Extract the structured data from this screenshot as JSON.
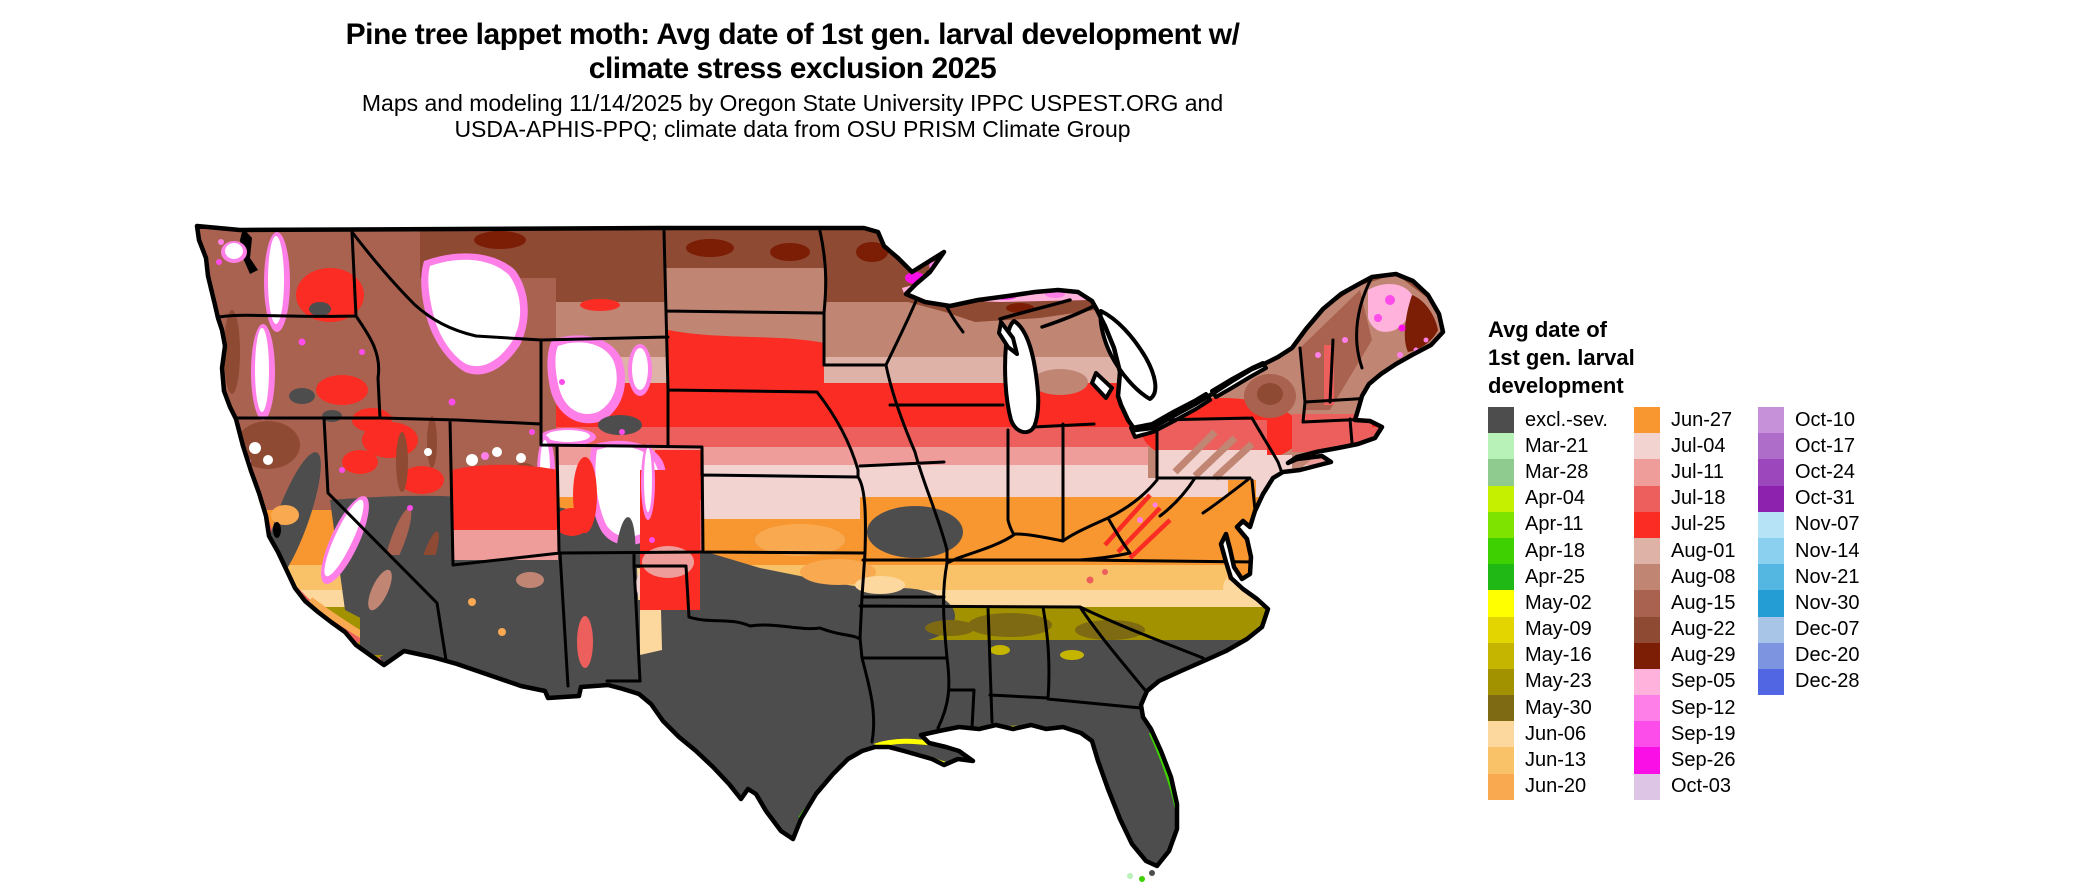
{
  "title": {
    "line1": "Pine tree lappet moth: Avg date of 1st gen. larval development w/",
    "line2": "climate stress exclusion 2025"
  },
  "subtitle": {
    "line1": "Maps and modeling 11/14/2025 by Oregon State University IPPC USPEST.ORG and",
    "line2": "USDA-APHIS-PPQ; climate data from OSU PRISM Climate Group"
  },
  "legend": {
    "title_lines": [
      "Avg date of",
      "1st gen. larval",
      "development"
    ],
    "columns": [
      [
        {
          "label": "excl.-sev.",
          "color": "#4d4d4d"
        },
        {
          "label": "Mar-21",
          "color": "#b8f2b8"
        },
        {
          "label": "Mar-28",
          "color": "#8fcb8f"
        },
        {
          "label": "Apr-04",
          "color": "#c5f000"
        },
        {
          "label": "Apr-11",
          "color": "#7fe300"
        },
        {
          "label": "Apr-18",
          "color": "#3ed000"
        },
        {
          "label": "Apr-25",
          "color": "#1fb814"
        },
        {
          "label": "May-02",
          "color": "#ffff00"
        },
        {
          "label": "May-09",
          "color": "#e3d500"
        },
        {
          "label": "May-16",
          "color": "#c6b500"
        },
        {
          "label": "May-23",
          "color": "#a39200"
        },
        {
          "label": "May-30",
          "color": "#7d6a12"
        },
        {
          "label": "Jun-06",
          "color": "#fdd89e"
        },
        {
          "label": "Jun-13",
          "color": "#fac268"
        },
        {
          "label": "Jun-20",
          "color": "#f9a950"
        }
      ],
      [
        {
          "label": "Jun-27",
          "color": "#f8962f"
        },
        {
          "label": "Jul-04",
          "color": "#f2d3cf"
        },
        {
          "label": "Jul-11",
          "color": "#ef9d9a"
        },
        {
          "label": "Jul-18",
          "color": "#ec5f5c"
        },
        {
          "label": "Jul-25",
          "color": "#fb2c23"
        },
        {
          "label": "Aug-01",
          "color": "#dfb2a8"
        },
        {
          "label": "Aug-08",
          "color": "#c08673"
        },
        {
          "label": "Aug-15",
          "color": "#a96250"
        },
        {
          "label": "Aug-22",
          "color": "#8f4a33"
        },
        {
          "label": "Aug-29",
          "color": "#7c1d05"
        },
        {
          "label": "Sep-05",
          "color": "#ffb2dc"
        },
        {
          "label": "Sep-12",
          "color": "#fd7fe7"
        },
        {
          "label": "Sep-19",
          "color": "#fc4ce9"
        },
        {
          "label": "Sep-26",
          "color": "#fa0fe6"
        },
        {
          "label": "Oct-03",
          "color": "#dcc5e5"
        }
      ],
      [
        {
          "label": "Oct-10",
          "color": "#c791d9"
        },
        {
          "label": "Oct-17",
          "color": "#ae6dc9"
        },
        {
          "label": "Oct-24",
          "color": "#9c48bc"
        },
        {
          "label": "Oct-31",
          "color": "#8c22ae"
        },
        {
          "label": "Nov-07",
          "color": "#b6e3f6"
        },
        {
          "label": "Nov-14",
          "color": "#8cd0ef"
        },
        {
          "label": "Nov-21",
          "color": "#53b7e1"
        },
        {
          "label": "Nov-30",
          "color": "#239dd3"
        },
        {
          "label": "Dec-07",
          "color": "#a8c5e7"
        },
        {
          "label": "Dec-20",
          "color": "#7d95e1"
        },
        {
          "label": "Dec-28",
          "color": "#5166e2"
        }
      ]
    ]
  },
  "map": {
    "region": "Contiguous United States",
    "type": "raster choropleth of average date of first-generation larval development",
    "background_color": "#ffffff",
    "state_border_color": "#000000",
    "excluded_areas_color": "#4d4d4d",
    "dominant_bands_north_to_south": [
      "Aug-22",
      "Aug-15",
      "Aug-08",
      "Aug-01",
      "Jul-25",
      "Jul-18",
      "Jul-11",
      "Jul-04",
      "Jun-27",
      "Jun-20",
      "Jun-13",
      "Jun-06",
      "May-23/May-30",
      "excl.-sev."
    ],
    "visible_water_features": [
      "Lake Superior",
      "Lake Michigan",
      "Lake Huron",
      "Lake Erie",
      "Lake Ontario",
      "Puget Sound",
      "Chesapeake Bay"
    ],
    "notes_visible": "White patches over the Rockies, Cascades and Sierra Nevada with magenta (Sep) fringes; dark gray exclusion zone over Texas, the Gulf Coast, Florida and the Desert Southwest; yellow/green coastal fringes along the Gulf and Florida coasts"
  }
}
